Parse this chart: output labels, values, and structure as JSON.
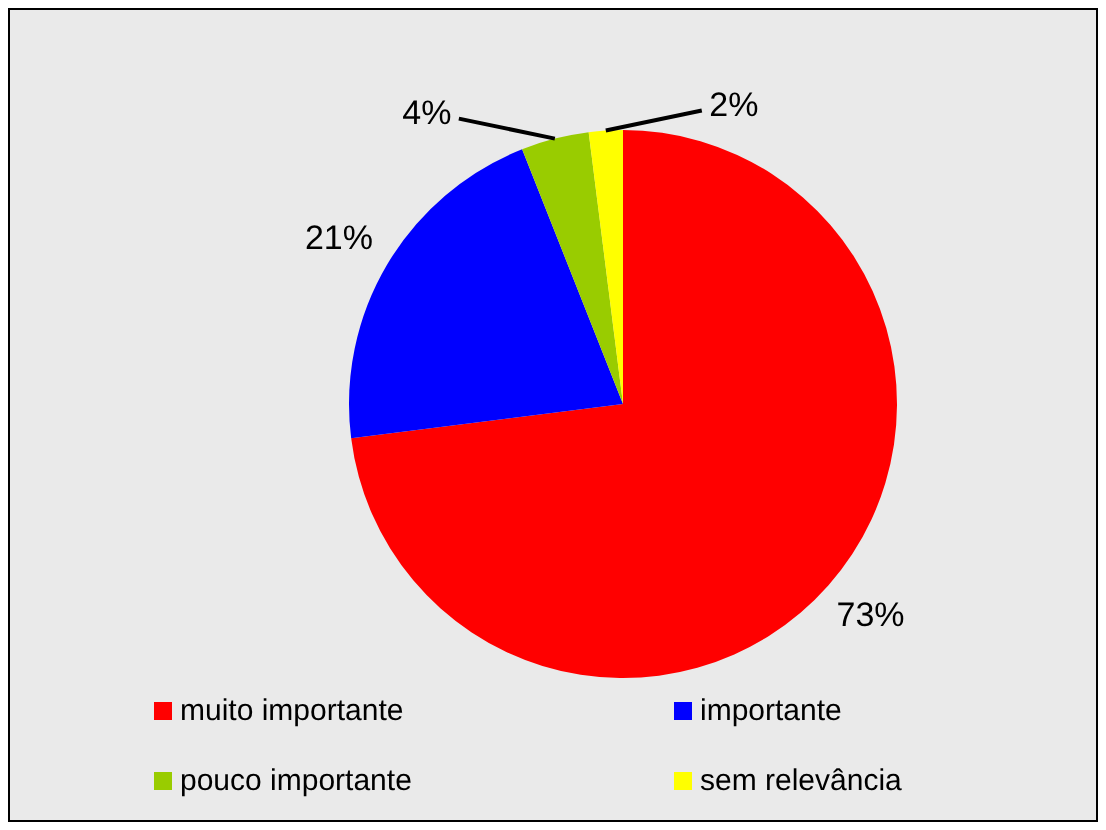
{
  "chart_data": {
    "type": "pie",
    "categories": [
      "muito importante",
      "importante",
      "pouco importante",
      "sem relevância"
    ],
    "values": [
      73,
      21,
      4,
      2
    ],
    "colors": [
      "#ff0000",
      "#0000ff",
      "#99cc00",
      "#ffff00"
    ],
    "value_labels": [
      "73%",
      "21%",
      "4%",
      "2%"
    ],
    "legend": "bottom"
  }
}
